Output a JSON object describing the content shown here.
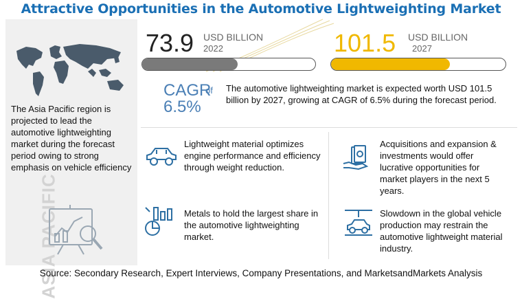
{
  "title": "Attractive Opportunities in the Automotive Lightweighting Market",
  "left": {
    "text": "The Asia Pacific region is projected to lead the automotive lightweighting market during the forecast period owing to strong emphasis on vehicle efficiency",
    "vertical_label": "ASIA PACIFIC"
  },
  "metric_2022": {
    "value": "73.9",
    "unit": "USD BILLION",
    "year": "2022",
    "fill_fraction": 0.55
  },
  "metric_2027": {
    "value": "101.5",
    "unit": "USD BILLION",
    "year": "2027",
    "fill_fraction": 0.68
  },
  "cagr": {
    "label": "CAGR",
    "of": "of",
    "value": "6.5%",
    "text": "The automotive lightweighting market is expected worth USD 101.5 billion by 2027, growing at CAGR of 6.5% during the forecast period."
  },
  "points": [
    {
      "text": "Lightweight material optimizes engine performance and efficiency through weight reduction.",
      "icon": "car-icon"
    },
    {
      "text": "Acquisitions and expansion & investments would offer lucrative opportunities for market players in the next 5 years.",
      "icon": "money-hand-icon"
    },
    {
      "text": "Metals to hold the largest share in the automotive lightweighting market.",
      "icon": "metal-chart-icon"
    },
    {
      "text": "Slowdown in the global vehicle production may restrain the automotive lightweight material industry.",
      "icon": "car-production-icon"
    }
  ],
  "source": "Source: Secondary Research, Expert Interviews, Company Presentations, and MarketsandMarkets Analysis",
  "colors": {
    "title": "#1a6fb4",
    "accent_yellow": "#f0b800",
    "cagr_blue": "#4a7fb5",
    "bar_gray": "#7a7a7a"
  }
}
